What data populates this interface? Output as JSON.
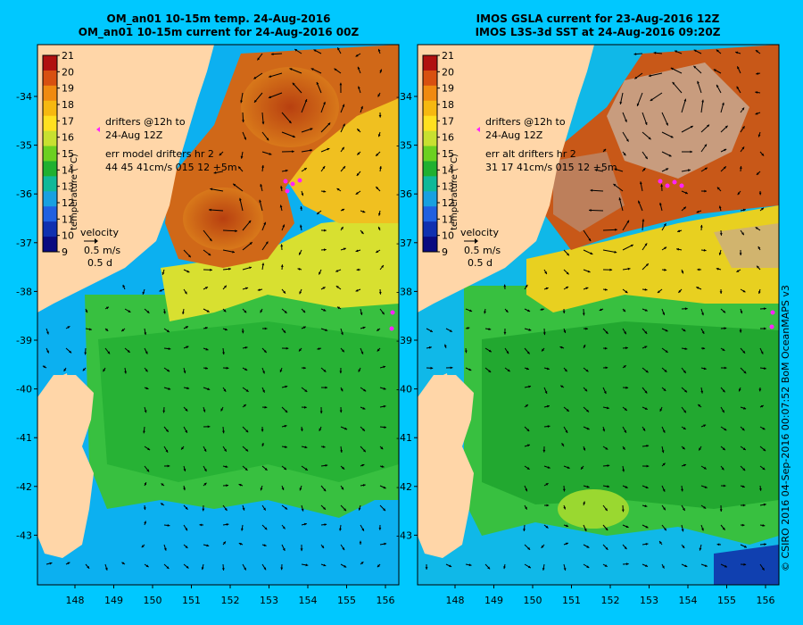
{
  "panels": [
    {
      "id": "model",
      "title_line1": "OM_an01 10-15m temp. 24-Aug-2016",
      "title_line2": "OM_an01 10-15m current for 24-Aug-2016 00Z",
      "drifters_label_line1": "drifters @12h to",
      "drifters_label_line2": "24-Aug 12Z",
      "err_line1": "err model drifters hr 2",
      "err_line2": "44 45 41cm/s 015 12 +5m"
    },
    {
      "id": "observed",
      "title_line1": "IMOS GSLA current for 23-Aug-2016 12Z",
      "title_line2": "IMOS L3S-3d SST at 24-Aug-2016 09:20Z",
      "drifters_label_line1": "drifters @12h to",
      "drifters_label_line2": "24-Aug 12Z",
      "err_line1": "err alt drifters hr 2",
      "err_line2": "31 17 41cm/s 015 12 +5m"
    }
  ],
  "colorbar": {
    "label": "temperature (°C)",
    "ticks": [
      "21",
      "20",
      "19",
      "18",
      "17",
      "16",
      "15",
      "14",
      "13",
      "12",
      "11",
      "10",
      "9"
    ],
    "colors": [
      "#b01010",
      "#d85010",
      "#f08a10",
      "#f6b810",
      "#ffe020",
      "#c8e030",
      "#6cd020",
      "#20b030",
      "#10b898",
      "#18a0e0",
      "#2060e0",
      "#1030b0",
      "#0a0a80"
    ]
  },
  "velocity_legend": {
    "title": "velocity",
    "speed": "0.5 m/s",
    "time": "0.5 d"
  },
  "axes": {
    "lat_labels": [
      "-34",
      "-35",
      "-36",
      "-37",
      "-38",
      "-39",
      "-40",
      "-41",
      "-42",
      "-43"
    ],
    "lon_labels": [
      "148",
      "149",
      "150",
      "151",
      "152",
      "153",
      "154",
      "155",
      "156"
    ]
  },
  "credit": "© CSIRO 2016   04-Sep-2016 00:07:52 BoM OceanMAPS v3",
  "colors": {
    "background": "#00c8ff",
    "land": "#ffd6a8",
    "drifter": "#ff22ff",
    "cloud": "#c8a890"
  }
}
